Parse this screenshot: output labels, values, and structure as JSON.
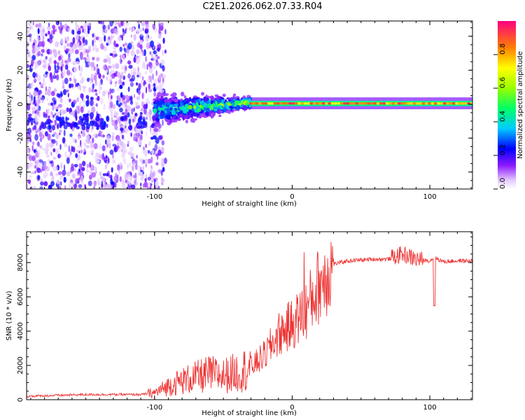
{
  "title": "C2E1.2026.062.07.33.R04",
  "chart_data": [
    {
      "type": "heatmap",
      "name": "spectrogram",
      "xlabel": "Height of straight line (km)",
      "ylabel": "Frequency (Hz)",
      "xlim": [
        -193,
        131
      ],
      "ylim": [
        -50,
        49
      ],
      "x_ticks": [
        -100,
        0,
        100
      ],
      "y_ticks": [
        -40,
        -20,
        0,
        20,
        40
      ],
      "colorbar": {
        "label": "Normalized spectral amplitude",
        "range": [
          0.0,
          1.0
        ],
        "ticks": [
          0.0,
          0.2,
          0.4,
          0.6,
          0.8
        ],
        "tick_labels": [
          "0.0",
          "0.2",
          "0.4",
          "0.6",
          "0.8"
        ]
      },
      "regions": [
        {
          "x_range": [
            -193,
            -100
          ],
          "description": "diffuse low-amplitude noise across all frequencies",
          "amplitude": 0.05
        },
        {
          "x_range": [
            -100,
            -30
          ],
          "description": "broadened signal band around 0 Hz",
          "amplitude": 0.4
        },
        {
          "x_range": [
            -30,
            131
          ],
          "description": "narrow high-amplitude line near 0 Hz",
          "amplitude": 0.95
        }
      ]
    },
    {
      "type": "line",
      "name": "snr",
      "xlabel": "Height of straight line (km)",
      "ylabel": "SNR (10 * v/v)",
      "xlim": [
        -193,
        131
      ],
      "ylim": [
        0,
        9800
      ],
      "x_ticks": [
        -100,
        0,
        100
      ],
      "y_ticks": [
        0,
        2000,
        4000,
        6000,
        8000
      ],
      "color": "#ee3333",
      "series": [
        {
          "name": "SNR",
          "x": [
            -193,
            -150,
            -110,
            -100,
            -90,
            -80,
            -70,
            -60,
            -50,
            -40,
            -30,
            -20,
            -10,
            0,
            10,
            20,
            30,
            40,
            50,
            60,
            70,
            80,
            90,
            100,
            103,
            110,
            120,
            131
          ],
          "y": [
            200,
            300,
            300,
            400,
            800,
            1100,
            1300,
            1500,
            1400,
            1600,
            1900,
            2600,
            3800,
            4400,
            5200,
            6800,
            7900,
            8100,
            8150,
            8200,
            8200,
            8500,
            8200,
            8100,
            8300,
            8050,
            8100,
            8100
          ]
        }
      ]
    }
  ]
}
